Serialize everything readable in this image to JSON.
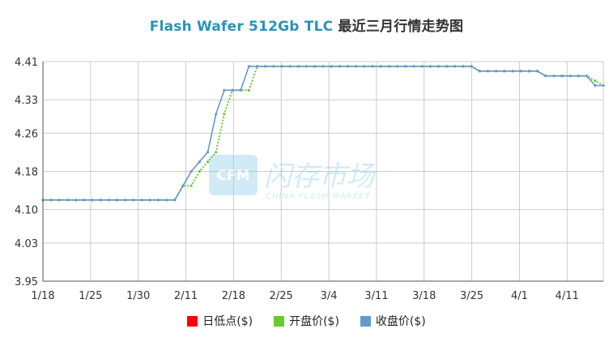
{
  "title_en": "Flash Wafer 512Gb TLC",
  "title_cn": "最近三月行情走势图",
  "watermark": {
    "cn": "闪存市场",
    "en": "CHINA FLASH MARKET",
    "logo": "CFM"
  },
  "colors": {
    "title": "#2a93b8",
    "low": "#ff0000",
    "open": "#66cc33",
    "close": "#6699cc",
    "grid": "#cccccc"
  },
  "legend": [
    {
      "key": "low",
      "label": "日低点($)",
      "color": "#ff0000"
    },
    {
      "key": "open",
      "label": "开盘价($)",
      "color": "#66cc33"
    },
    {
      "key": "close",
      "label": "收盘价($)",
      "color": "#6699cc"
    }
  ],
  "chart_data": {
    "type": "line",
    "ylim": [
      3.95,
      4.41
    ],
    "yticks": [
      "3.95",
      "4.03",
      "4.10",
      "4.18",
      "4.26",
      "4.33",
      "4.41"
    ],
    "xticks": [
      "1/18",
      "1/25",
      "1/30",
      "2/11",
      "2/18",
      "2/25",
      "3/4",
      "3/11",
      "3/18",
      "3/25",
      "4/1",
      "4/11"
    ],
    "grid": true,
    "legend_position": "bottom",
    "series": [
      {
        "name": "开盘价($)",
        "values": [
          4.12,
          4.12,
          4.12,
          4.12,
          4.12,
          4.12,
          4.12,
          4.12,
          4.12,
          4.12,
          4.12,
          4.12,
          4.12,
          4.12,
          4.12,
          4.12,
          4.12,
          4.15,
          4.15,
          4.18,
          4.2,
          4.22,
          4.3,
          4.35,
          4.35,
          4.35,
          4.4,
          4.4,
          4.4,
          4.4,
          4.4,
          4.4,
          4.4,
          4.4,
          4.4,
          4.4,
          4.4,
          4.4,
          4.4,
          4.4,
          4.4,
          4.4,
          4.4,
          4.4,
          4.4,
          4.4,
          4.4,
          4.4,
          4.4,
          4.4,
          4.4,
          4.4,
          4.4,
          4.39,
          4.39,
          4.39,
          4.39,
          4.39,
          4.39,
          4.39,
          4.39,
          4.38,
          4.38,
          4.38,
          4.38,
          4.38,
          4.38,
          4.37,
          4.36
        ]
      },
      {
        "name": "收盘价($)",
        "values": [
          4.12,
          4.12,
          4.12,
          4.12,
          4.12,
          4.12,
          4.12,
          4.12,
          4.12,
          4.12,
          4.12,
          4.12,
          4.12,
          4.12,
          4.12,
          4.12,
          4.12,
          4.15,
          4.18,
          4.2,
          4.22,
          4.3,
          4.35,
          4.35,
          4.35,
          4.4,
          4.4,
          4.4,
          4.4,
          4.4,
          4.4,
          4.4,
          4.4,
          4.4,
          4.4,
          4.4,
          4.4,
          4.4,
          4.4,
          4.4,
          4.4,
          4.4,
          4.4,
          4.4,
          4.4,
          4.4,
          4.4,
          4.4,
          4.4,
          4.4,
          4.4,
          4.4,
          4.4,
          4.39,
          4.39,
          4.39,
          4.39,
          4.39,
          4.39,
          4.39,
          4.39,
          4.38,
          4.38,
          4.38,
          4.38,
          4.38,
          4.38,
          4.36,
          4.36
        ]
      }
    ]
  }
}
